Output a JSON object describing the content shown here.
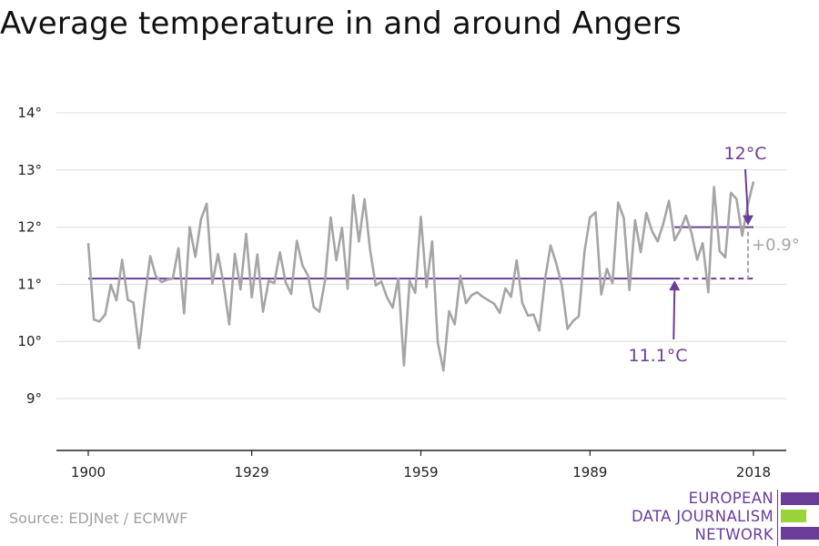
{
  "title": "Average temperature in and around Angers",
  "source": "Source: EDJNet / ECMWF",
  "logo": {
    "lines": [
      "EUROPEAN",
      "DATA JOURNALISM",
      "NETWORK"
    ]
  },
  "colors": {
    "series": "#a5a5a5",
    "reference": "#6a3d99",
    "grid": "#dcdcdc",
    "axis": "#222222",
    "delta": "#a5a5a5",
    "logo_green": "#9ad23a"
  },
  "chart_data": {
    "type": "line",
    "title": "Average temperature in and around Angers",
    "xlabel": "",
    "ylabel": "",
    "xlim": [
      1900,
      2018
    ],
    "ylim": [
      8.2,
      14.3
    ],
    "grid": true,
    "x_ticks": [
      1900,
      1929,
      1959,
      1989,
      2018
    ],
    "y_ticks": [
      9,
      10,
      11,
      12,
      13,
      14
    ],
    "y_tick_labels": [
      "9°",
      "10°",
      "11°",
      "12°",
      "13°",
      "14°"
    ],
    "series": [
      {
        "x": [
          1900,
          1901,
          1902,
          1903,
          1904,
          1905,
          1906,
          1907,
          1908,
          1909,
          1910,
          1911,
          1912,
          1913,
          1914,
          1915,
          1916,
          1917,
          1918,
          1919,
          1920,
          1921,
          1922,
          1923,
          1924,
          1925,
          1926,
          1927,
          1928,
          1929,
          1930,
          1931,
          1932,
          1933,
          1934,
          1935,
          1936,
          1937,
          1938,
          1939,
          1940,
          1941,
          1942,
          1943,
          1944,
          1945,
          1946,
          1947,
          1948,
          1949,
          1950,
          1951,
          1952,
          1953,
          1954,
          1955,
          1956,
          1957,
          1958,
          1959,
          1960,
          1961,
          1962,
          1963,
          1964,
          1965,
          1966,
          1967,
          1968,
          1969,
          1970,
          1971,
          1972,
          1973,
          1974,
          1975,
          1976,
          1977,
          1978,
          1979,
          1980,
          1981,
          1982,
          1983,
          1984,
          1985,
          1986,
          1987,
          1988,
          1989,
          1990,
          1991,
          1992,
          1993,
          1994,
          1995,
          1996,
          1997,
          1998,
          1999,
          2000,
          2001,
          2002,
          2003,
          2004,
          2005,
          2006,
          2007,
          2008,
          2009,
          2010,
          2011,
          2012,
          2013,
          2014,
          2015,
          2016,
          2017,
          2018
        ],
        "values": [
          11.72,
          10.38,
          10.35,
          10.47,
          10.99,
          10.72,
          11.43,
          10.73,
          10.68,
          9.88,
          10.72,
          11.49,
          11.14,
          11.04,
          11.08,
          11.1,
          11.63,
          10.49,
          12.0,
          11.48,
          12.14,
          12.41,
          11.01,
          11.53,
          11.01,
          10.3,
          11.53,
          10.91,
          11.88,
          10.77,
          11.52,
          10.52,
          11.06,
          11.02,
          11.56,
          11.04,
          10.83,
          11.76,
          11.33,
          11.15,
          10.6,
          10.52,
          11.07,
          12.17,
          11.42,
          11.99,
          10.92,
          12.56,
          11.75,
          12.49,
          11.6,
          10.98,
          11.05,
          10.77,
          10.59,
          11.1,
          9.58,
          11.06,
          10.85,
          12.18,
          10.95,
          11.75,
          9.98,
          9.49,
          10.53,
          10.3,
          11.15,
          10.67,
          10.81,
          10.86,
          10.78,
          10.72,
          10.66,
          10.5,
          10.93,
          10.78,
          11.42,
          10.67,
          10.45,
          10.47,
          10.19,
          11.07,
          11.68,
          11.37,
          10.98,
          10.22,
          10.36,
          10.44,
          11.56,
          12.17,
          12.26,
          10.82,
          11.27,
          11.02,
          12.43,
          12.16,
          10.9,
          12.12,
          11.56,
          12.25,
          11.93,
          11.75,
          12.06,
          12.46,
          11.77,
          11.95,
          12.2,
          11.9,
          11.43,
          11.72,
          10.86,
          12.7,
          11.58,
          11.47,
          12.6,
          12.49,
          11.85,
          12.39,
          12.8
        ]
      }
    ],
    "reference_lines": [
      {
        "label": "11.1°C",
        "value": 11.1,
        "x_start": 1900,
        "x_end": 2018,
        "solid_until": 2004
      },
      {
        "label": "12°C",
        "value": 12.0,
        "x_start": 2004,
        "x_end": 2018
      }
    ],
    "annotations": [
      {
        "text": "12°C",
        "color": "#6a3d99"
      },
      {
        "text": "11.1°C",
        "color": "#6a3d99"
      },
      {
        "text": "+0.9°",
        "color": "#a5a5a5"
      }
    ]
  }
}
